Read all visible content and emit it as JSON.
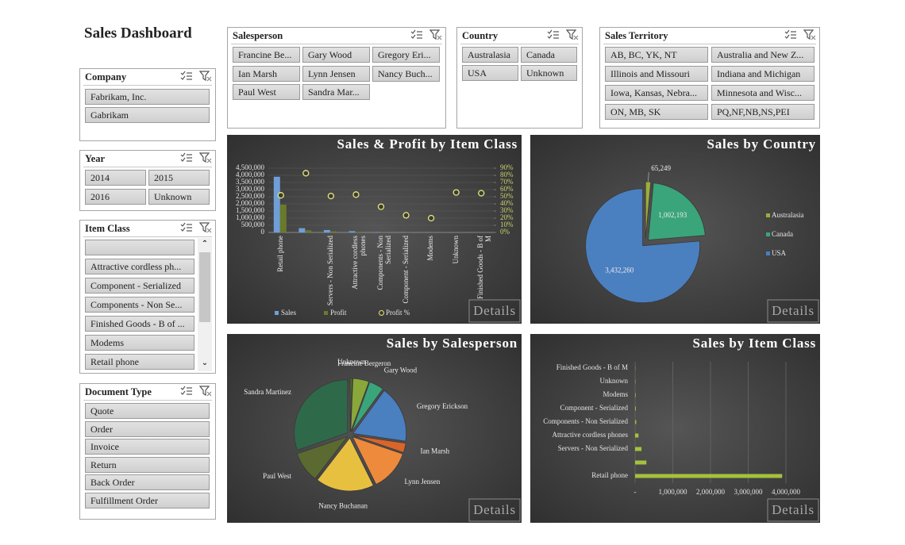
{
  "header": {
    "title": "Sales Dashboard"
  },
  "slicers": [
    {
      "title": "Company",
      "items": [
        "Fabrikam, Inc.",
        "Gabrikam"
      ]
    },
    {
      "title": "Year",
      "items": [
        "2014",
        "2015",
        "2016",
        "Unknown"
      ]
    },
    {
      "title": "Item Class",
      "items": [
        null,
        "Attractive cordless ph...",
        "Component - Serialized",
        "Components - Non Se...",
        "Finished Goods - B of ...",
        "Modems",
        "Retail phone"
      ]
    },
    {
      "title": "Document Type",
      "items": [
        "Quote",
        "Order",
        "Invoice",
        "Return",
        "Back Order",
        "Fulfillment Order"
      ]
    },
    {
      "title": "Salesperson",
      "items": [
        "Francine Be...",
        "Gary Wood",
        "Gregory Eri...",
        "Ian Marsh",
        "Lynn Jensen",
        "Nancy Buch...",
        "Paul West",
        "Sandra Mar..."
      ]
    },
    {
      "title": "Country",
      "items": [
        "Australasia",
        "Canada",
        "USA",
        "Unknown"
      ]
    },
    {
      "title": "Sales Territory",
      "items": [
        "AB, BC, YK, NT",
        "Australia and New Z...",
        "Illinois and Missouri",
        "Indiana and Michigan",
        "Iowa, Kansas, Nebra...",
        "Minnesota and Wisc...",
        "ON, MB, SK",
        "PQ,NF,NB,NS,PEI"
      ]
    }
  ],
  "chart_data": [
    {
      "type": "combo",
      "title": "Sales & Profit by Item Class",
      "categories": [
        "Retail phone",
        null,
        "Servers - Non Serialized",
        "Attractive cordless phones",
        "Components - Non Serialized",
        "Component - Serialized",
        "Modems",
        "Unknown",
        "Finished Goods - B of M"
      ],
      "series": [
        {
          "name": "Sales",
          "type": "bar",
          "color": "#6f9fd8",
          "values": [
            3900000,
            300000,
            170000,
            90000,
            30000,
            20000,
            15000,
            10000,
            5000
          ]
        },
        {
          "name": "Profit",
          "type": "bar",
          "color": "#6b7a2a",
          "values": [
            1950000,
            150000,
            80000,
            40000,
            10000,
            8000,
            5000,
            3000,
            1000
          ]
        },
        {
          "name": "Profit %",
          "type": "scatter",
          "axis": "y2",
          "color": "#e6e67a",
          "values": [
            52,
            83,
            51,
            53,
            36,
            24,
            20,
            56,
            55
          ]
        }
      ],
      "ylim": [
        0,
        4500000
      ],
      "yticks": [
        0,
        {
          "value": 500000,
          "label": "500,000"
        },
        {
          "value": 1000000,
          "label": "1,000,000"
        },
        {
          "value": 1500000,
          "label": "1,500,000"
        },
        {
          "value": 2000000,
          "label": "2,000,000"
        },
        {
          "value": 2500000,
          "label": "2,500,000"
        },
        {
          "value": 3000000,
          "label": "3,000,000"
        },
        {
          "value": 3500000,
          "label": "3,500,000"
        },
        {
          "value": 4000000,
          "label": "4,000,000"
        },
        {
          "value": 4500000,
          "label": "4,500,000"
        }
      ],
      "y2lim": [
        0,
        90
      ],
      "y2ticks": [
        {
          "value": 0,
          "label": "0%"
        },
        {
          "value": 10,
          "label": "10%"
        },
        {
          "value": 20,
          "label": "20%"
        },
        {
          "value": 30,
          "label": "30%"
        },
        {
          "value": 40,
          "label": "40%"
        },
        {
          "value": 50,
          "label": "50%"
        },
        {
          "value": 60,
          "label": "60%"
        },
        {
          "value": 70,
          "label": "70%"
        },
        {
          "value": 80,
          "label": "80%"
        },
        {
          "value": 90,
          "label": "90%"
        }
      ],
      "grid": true,
      "legend": "bottom",
      "button": "Details"
    },
    {
      "type": "pie",
      "title": "Sales by Country",
      "categories": [
        "Australasia",
        "Canada",
        "USA"
      ],
      "values": [
        65249,
        1002193,
        3432260
      ],
      "value_labels": [
        "65,249",
        "1,002,193",
        "3,432,260"
      ],
      "colors": [
        "#9aae3a",
        "#3aa57a",
        "#4a7fc0"
      ],
      "legend": "right",
      "button": "Details"
    },
    {
      "type": "pie",
      "title": "Sales by Salesperson",
      "categories": [
        "Unknown",
        "Francine Bergeron",
        "Gary Wood",
        "Gregory Erickson",
        "Ian Marsh",
        "Lynn Jensen",
        "Nancy Buchanan",
        "Paul West",
        "Sandra Martinez"
      ],
      "values": [
        30000,
        220000,
        200000,
        780000,
        130000,
        560000,
        800000,
        420000,
        1360000
      ],
      "colors": [
        "#4f6f2a",
        "#8aa73a",
        "#3aa57a",
        "#4a7fc0",
        "#d8652a",
        "#ee8a3c",
        "#e8c040",
        "#5a6a30",
        "#2e6a4a"
      ],
      "legend": "labels",
      "button": "Details"
    },
    {
      "type": "hbar",
      "title": "Sales by Item Class",
      "categories": [
        "Retail phone",
        null,
        "Servers - Non Serialized",
        "Attractive cordless phones",
        "Components - Non Serialized",
        "Component - Serialized",
        "Modems",
        "Unknown",
        "Finished Goods - B of M"
      ],
      "values": [
        3900000,
        300000,
        170000,
        90000,
        30000,
        20000,
        15000,
        10000,
        5000
      ],
      "color": "#a4c23c",
      "xlim": [
        0,
        4500000
      ],
      "xticks": [
        {
          "value": 0,
          "label": "-"
        },
        {
          "value": 1000000,
          "label": "1,000,000"
        },
        {
          "value": 2000000,
          "label": "2,000,000"
        },
        {
          "value": 3000000,
          "label": "3,000,000"
        },
        {
          "value": 4000000,
          "label": "4,000,000"
        }
      ],
      "grid": true,
      "button": "Details"
    }
  ]
}
